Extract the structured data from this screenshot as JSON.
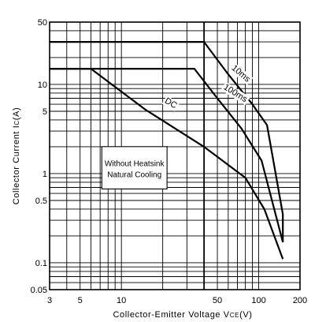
{
  "chart_data": {
    "type": "line",
    "title": "",
    "xlabel": "Collector-Emitter Voltage VCE(V)",
    "xlabel_main": "Collector-Emitter Voltage V",
    "xlabel_sub": "CE",
    "xlabel_unit": "(V)",
    "ylabel": "Collector Current IC(A)",
    "ylabel_main": "Collector Current I",
    "ylabel_sub": "C",
    "ylabel_unit": "(A)",
    "x_scale": "log",
    "y_scale": "log",
    "xlim": [
      3,
      200
    ],
    "ylim": [
      0.05,
      50
    ],
    "x_ticks": [
      {
        "value": 3,
        "label": "3"
      },
      {
        "value": 5,
        "label": "5"
      },
      {
        "value": 10,
        "label": "10"
      },
      {
        "value": 50,
        "label": "50"
      },
      {
        "value": 100,
        "label": "100"
      },
      {
        "value": 200,
        "label": "200"
      }
    ],
    "y_ticks": [
      {
        "value": 0.05,
        "label": "0.05"
      },
      {
        "value": 0.1,
        "label": "0.1"
      },
      {
        "value": 0.5,
        "label": "0.5"
      },
      {
        "value": 1,
        "label": "1"
      },
      {
        "value": 5,
        "label": "5"
      },
      {
        "value": 10,
        "label": "10"
      },
      {
        "value": 50,
        "label": "50"
      }
    ],
    "grid": true,
    "reference_line_x": 40,
    "series": [
      {
        "name": "10ms",
        "x": [
          3,
          40,
          60,
          90,
          115,
          150,
          150
        ],
        "y": [
          30,
          30,
          13,
          6,
          3.5,
          0.35,
          0.17
        ]
      },
      {
        "name": "100ms",
        "x": [
          3,
          34,
          50,
          75,
          105,
          150
        ],
        "y": [
          15,
          15,
          7,
          3.2,
          1.4,
          0.17
        ]
      },
      {
        "name": "DC",
        "x": [
          3,
          6,
          15,
          40,
          80,
          110,
          150
        ],
        "y": [
          15,
          15,
          5.2,
          2,
          0.9,
          0.4,
          0.11
        ]
      }
    ],
    "annotation": {
      "line1": "Without Heatsink",
      "line2": "Natural Cooling"
    }
  }
}
